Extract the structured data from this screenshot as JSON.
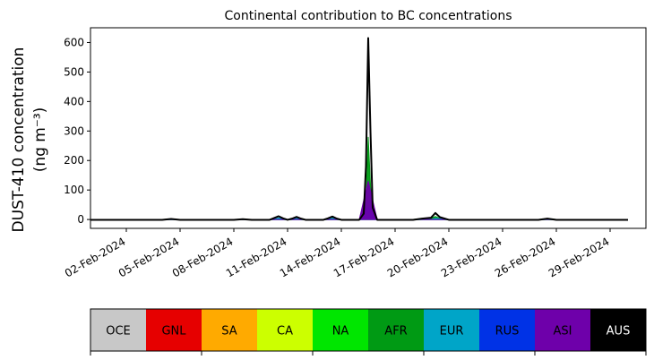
{
  "chart_data": {
    "type": "area",
    "title": "Continental contribution to BC concentrations",
    "ylabel_line1": "DUST-410 concentration",
    "ylabel_line2": "(ng m⁻³)",
    "xlabel": "",
    "x_start": "2024-01-31",
    "x_end": "2024-03-02",
    "xlim": [
      "2024-01-31",
      "2024-03-02"
    ],
    "ylim": [
      -30,
      650
    ],
    "yticks": [
      0,
      100,
      200,
      300,
      400,
      500,
      600
    ],
    "xticks": [
      "02-Feb-2024",
      "05-Feb-2024",
      "08-Feb-2024",
      "11-Feb-2024",
      "14-Feb-2024",
      "17-Feb-2024",
      "20-Feb-2024",
      "23-Feb-2024",
      "26-Feb-2024",
      "29-Feb-2024"
    ],
    "grid": false,
    "legend": [
      {
        "name": "OCE",
        "color": "#c8c8c8",
        "text_color": "#000000"
      },
      {
        "name": "GNL",
        "color": "#e60000",
        "text_color": "#000000"
      },
      {
        "name": "SA",
        "color": "#ffaa00",
        "text_color": "#000000"
      },
      {
        "name": "CA",
        "color": "#ccff00",
        "text_color": "#000000"
      },
      {
        "name": "NA",
        "color": "#00e600",
        "text_color": "#000000"
      },
      {
        "name": "AFR",
        "color": "#009a14",
        "text_color": "#000000"
      },
      {
        "name": "EUR",
        "color": "#00a5c8",
        "text_color": "#000000"
      },
      {
        "name": "RUS",
        "color": "#0032e6",
        "text_color": "#000000"
      },
      {
        "name": "ASI",
        "color": "#6e00aa",
        "text_color": "#000000"
      },
      {
        "name": "AUS",
        "color": "#000000",
        "text_color": "#ffffff"
      }
    ],
    "series": [
      {
        "name": "AFR",
        "color": "#009a14",
        "points": [
          [
            "2024-01-31",
            0
          ],
          [
            "2024-02-04",
            0
          ],
          [
            "2024-02-04 12:00",
            2
          ],
          [
            "2024-02-05",
            0
          ],
          [
            "2024-02-08",
            0
          ],
          [
            "2024-02-08 12:00",
            1
          ],
          [
            "2024-02-09",
            0
          ],
          [
            "2024-02-10",
            0
          ],
          [
            "2024-02-10 12:00",
            4
          ],
          [
            "2024-02-11",
            0
          ],
          [
            "2024-02-11 12:00",
            3
          ],
          [
            "2024-02-12",
            0
          ],
          [
            "2024-02-13",
            0
          ],
          [
            "2024-02-13 12:00",
            5
          ],
          [
            "2024-02-14",
            0
          ],
          [
            "2024-02-15",
            0
          ],
          [
            "2024-02-15 09:00",
            60
          ],
          [
            "2024-02-15 12:00",
            280
          ],
          [
            "2024-02-15 15:00",
            120
          ],
          [
            "2024-02-15 18:00",
            20
          ],
          [
            "2024-02-16",
            0
          ],
          [
            "2024-02-18",
            0
          ],
          [
            "2024-02-18 06:00",
            2
          ],
          [
            "2024-02-18 18:00",
            3
          ],
          [
            "2024-02-19",
            5
          ],
          [
            "2024-02-19 06:00",
            10
          ],
          [
            "2024-02-19 12:00",
            4
          ],
          [
            "2024-02-20",
            0
          ],
          [
            "2024-02-25",
            0
          ],
          [
            "2024-02-25 12:00",
            3
          ],
          [
            "2024-02-26",
            0
          ],
          [
            "2024-03-01",
            0
          ]
        ]
      },
      {
        "name": "NA",
        "color": "#00e600",
        "points": [
          [
            "2024-01-31",
            0
          ],
          [
            "2024-02-04",
            0
          ],
          [
            "2024-02-04 12:00",
            1
          ],
          [
            "2024-02-05",
            0
          ],
          [
            "2024-02-15",
            0
          ],
          [
            "2024-02-15 12:00",
            15
          ],
          [
            "2024-02-16",
            0
          ],
          [
            "2024-02-19",
            0
          ],
          [
            "2024-02-19 06:00",
            4
          ],
          [
            "2024-02-20",
            0
          ],
          [
            "2024-02-25",
            0
          ],
          [
            "2024-02-25 12:00",
            2
          ],
          [
            "2024-02-26",
            0
          ],
          [
            "2024-03-01",
            0
          ]
        ]
      },
      {
        "name": "EUR",
        "color": "#00a5c8",
        "points": [
          [
            "2024-01-31",
            0
          ],
          [
            "2024-02-10",
            0
          ],
          [
            "2024-02-10 12:00",
            5
          ],
          [
            "2024-02-11",
            0
          ],
          [
            "2024-02-11 12:00",
            4
          ],
          [
            "2024-02-12",
            0
          ],
          [
            "2024-02-13",
            0
          ],
          [
            "2024-02-13 12:00",
            4
          ],
          [
            "2024-02-14",
            0
          ],
          [
            "2024-02-15",
            0
          ],
          [
            "2024-02-15 12:00",
            40
          ],
          [
            "2024-02-16",
            0
          ],
          [
            "2024-02-19",
            0
          ],
          [
            "2024-02-19 06:00",
            4
          ],
          [
            "2024-02-20",
            0
          ],
          [
            "2024-03-01",
            0
          ]
        ]
      },
      {
        "name": "RUS",
        "color": "#0032e6",
        "points": [
          [
            "2024-01-31",
            0
          ],
          [
            "2024-02-15",
            0
          ],
          [
            "2024-02-15 12:00",
            45
          ],
          [
            "2024-02-16",
            0
          ],
          [
            "2024-03-01",
            0
          ]
        ]
      },
      {
        "name": "ASI",
        "color": "#6e00aa",
        "points": [
          [
            "2024-01-31",
            0
          ],
          [
            "2024-02-15",
            0
          ],
          [
            "2024-02-15 12:00",
            130
          ],
          [
            "2024-02-16",
            0
          ],
          [
            "2024-03-01",
            0
          ]
        ]
      }
    ],
    "total": {
      "name": "AUS",
      "color": "#000000",
      "points": [
        [
          "2024-01-31",
          -1
        ],
        [
          "2024-02-02",
          -1
        ],
        [
          "2024-02-04",
          -1
        ],
        [
          "2024-02-04 12:00",
          2
        ],
        [
          "2024-02-05",
          -1
        ],
        [
          "2024-02-08",
          -1
        ],
        [
          "2024-02-08 12:00",
          1
        ],
        [
          "2024-02-09",
          -1
        ],
        [
          "2024-02-10",
          -1
        ],
        [
          "2024-02-10 06:00",
          5
        ],
        [
          "2024-02-10 12:00",
          11
        ],
        [
          "2024-02-10 18:00",
          4
        ],
        [
          "2024-02-11",
          -1
        ],
        [
          "2024-02-11 06:00",
          3
        ],
        [
          "2024-02-11 12:00",
          9
        ],
        [
          "2024-02-11 18:00",
          3
        ],
        [
          "2024-02-12",
          -1
        ],
        [
          "2024-02-13",
          -1
        ],
        [
          "2024-02-13 06:00",
          4
        ],
        [
          "2024-02-13 12:00",
          10
        ],
        [
          "2024-02-13 18:00",
          3
        ],
        [
          "2024-02-14",
          -1
        ],
        [
          "2024-02-15",
          -1
        ],
        [
          "2024-02-15 06:00",
          20
        ],
        [
          "2024-02-15 09:00",
          180
        ],
        [
          "2024-02-15 12:00",
          615
        ],
        [
          "2024-02-15 15:00",
          300
        ],
        [
          "2024-02-15 18:00",
          40
        ],
        [
          "2024-02-16",
          -1
        ],
        [
          "2024-02-18",
          -1
        ],
        [
          "2024-02-18 12:00",
          3
        ],
        [
          "2024-02-19",
          6
        ],
        [
          "2024-02-19 06:00",
          22
        ],
        [
          "2024-02-19 12:00",
          8
        ],
        [
          "2024-02-20",
          -1
        ],
        [
          "2024-02-25",
          -1
        ],
        [
          "2024-02-25 12:00",
          3
        ],
        [
          "2024-02-26",
          -1
        ],
        [
          "2024-03-01",
          -1
        ]
      ]
    }
  }
}
